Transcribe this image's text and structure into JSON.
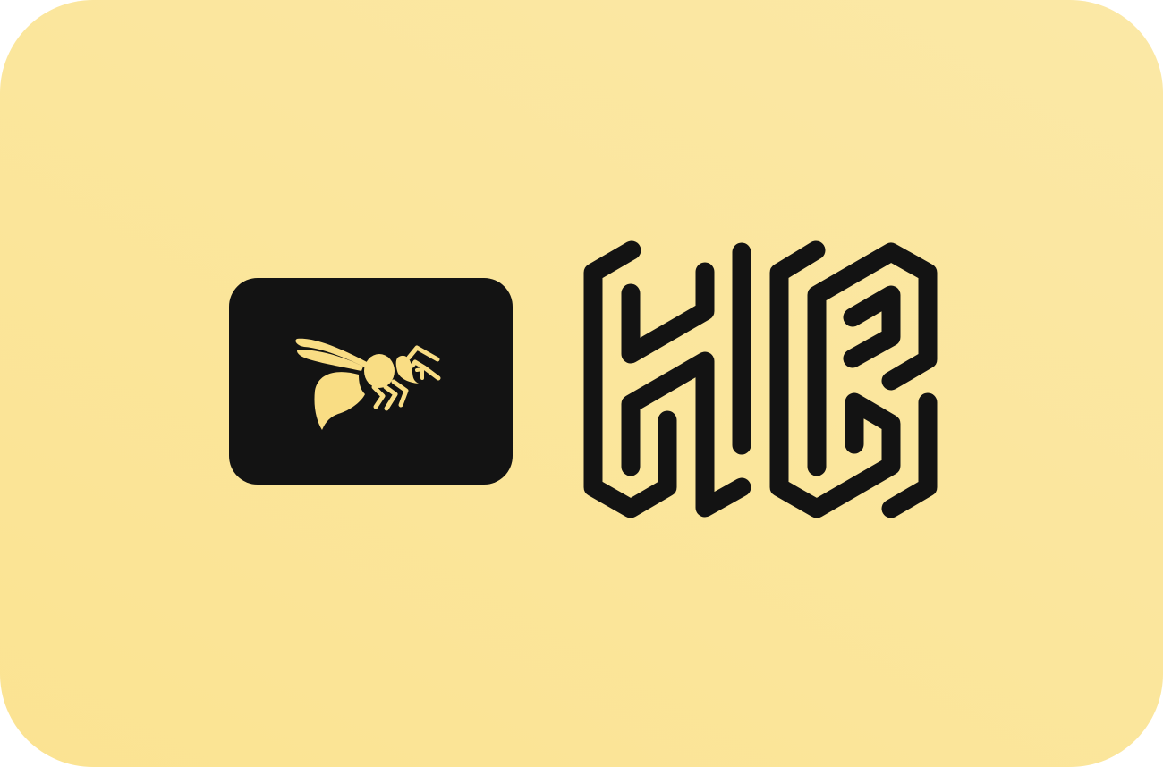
{
  "logo": {
    "icon": "wasp-icon",
    "wordmark_icon": "hive-monogram",
    "colors": {
      "background": "#fbe597",
      "badge": "#131313",
      "wasp": "#f9dd84",
      "wordmark": "#131313"
    }
  }
}
